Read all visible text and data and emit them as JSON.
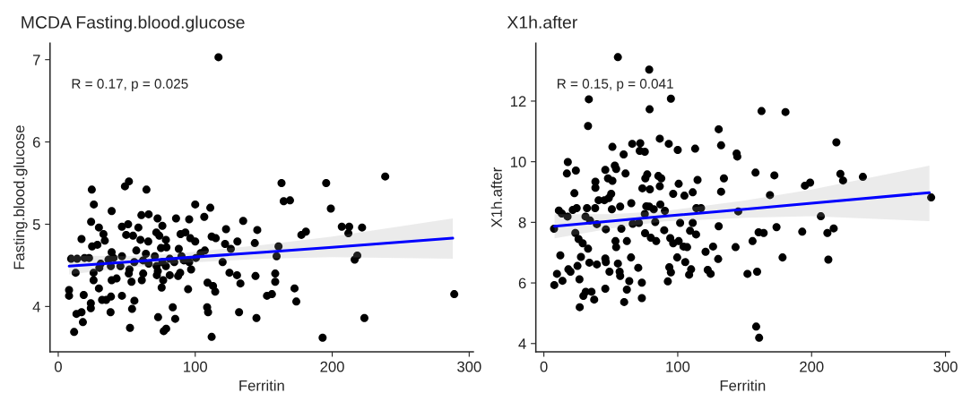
{
  "chart_data": [
    {
      "type": "scatter",
      "title": "MCDA Fasting.blood.glucose",
      "xlabel": "Ferritin",
      "ylabel": "Fasting.blood.glucose",
      "annotations": [
        "R = 0.17, p = 0.025"
      ],
      "xlim": [
        -6,
        303
      ],
      "ylim": [
        3.45,
        7.2
      ],
      "xticks": [
        0,
        100,
        200,
        300
      ],
      "yticks": [
        4,
        5,
        6,
        7
      ],
      "grid": false,
      "series": [
        {
          "color": "#000000",
          "marker": "circle",
          "x": [
            117,
            24.5,
            26,
            39,
            48.7,
            51.6,
            64.4,
            60.7,
            66,
            24,
            29.7,
            33,
            34,
            17,
            24.7,
            28.6,
            46.5,
            51,
            58.5,
            49.6,
            54.6,
            60,
            65.7,
            72.5,
            76,
            71.6,
            73.8,
            78.6,
            75,
            79,
            86,
            89.3,
            92.8,
            95.6,
            96.4,
            100,
            106.6,
            111,
            112,
            115,
            100,
            88,
            9.4,
            13.8,
            12.7,
            19.2,
            22.5,
            39,
            36.7,
            31,
            25.8,
            30,
            38.4,
            40.4,
            46.5,
            45.4,
            52,
            55.5,
            57,
            61.9,
            64,
            66,
            70.5,
            72.7,
            76,
            78.6,
            81.4,
            84.7,
            90,
            91.7,
            95.6,
            100.5,
            104,
            107,
            120,
            51.5,
            53.5,
            42.6,
            39,
            25.8,
            29.7,
            32,
            35,
            38.5,
            46.5,
            55.6,
            61,
            62,
            71.8,
            72,
            75.5,
            76.6,
            81.4,
            87.5,
            89,
            94.8,
            97,
            109,
            113,
            114.6,
            125,
            130.5,
            133,
            121.8,
            122.5,
            130.8,
            126,
            7.9,
            7.9,
            18.6,
            13.3,
            17,
            18,
            23.8,
            23.8,
            38.2,
            53.9,
            52.4,
            72.9,
            78.8,
            77,
            83.6,
            85.4,
            108.7,
            109.4,
            112,
            11.6,
            132,
            135,
            163,
            195.6,
            238.7,
            164.6,
            169.2,
            199,
            145.3,
            143.5,
            160.8,
            159.4,
            177.5,
            180.8,
            207,
            212.4,
            211.8,
            221.8,
            218.3,
            216.4,
            144,
            158.4,
            158.4,
            152.4,
            156,
            172.5,
            173.8,
            144.7,
            193,
            223.5,
            289.1
          ],
          "values": [
            7.03,
            5.42,
            5.24,
            5.16,
            5.46,
            5.52,
            5.42,
            5.11,
            5.12,
            5.03,
            4.96,
            4.88,
            4.8,
            4.82,
            4.73,
            4.75,
            4.97,
            5.0,
            4.96,
            4.87,
            4.86,
            4.81,
            4.79,
            5.07,
            4.98,
            4.9,
            4.86,
            4.81,
            4.71,
            4.72,
            5.07,
            4.88,
            4.9,
            5.06,
            4.83,
            5.24,
            5.09,
            5.2,
            4.85,
            4.83,
            4.79,
            4.7,
            4.58,
            4.58,
            4.41,
            4.59,
            4.59,
            4.66,
            4.57,
            4.52,
            4.41,
            4.47,
            4.49,
            4.59,
            4.61,
            4.49,
            4.45,
            4.54,
            4.68,
            4.56,
            4.64,
            4.52,
            4.61,
            4.43,
            4.54,
            4.49,
            4.58,
            4.54,
            4.61,
            4.56,
            4.54,
            4.59,
            4.65,
            4.68,
            4.54,
            4.4,
            4.3,
            4.34,
            4.32,
            4.32,
            4.22,
            4.08,
            4.08,
            4.12,
            4.13,
            4.07,
            4.32,
            4.4,
            4.49,
            4.38,
            4.23,
            4.32,
            4.38,
            4.37,
            4.41,
            4.21,
            4.45,
            4.29,
            4.25,
            4.18,
            4.41,
            4.38,
            4.28,
            4.76,
            4.94,
            4.79,
            4.7,
            4.2,
            4.13,
            4.14,
            3.91,
            3.93,
            3.81,
            3.98,
            4.04,
            3.93,
            3.97,
            3.74,
            3.87,
            3.73,
            3.7,
            3.99,
            3.85,
            3.99,
            3.93,
            3.63,
            3.69,
            3.93,
            5.04,
            5.5,
            5.5,
            5.58,
            5.28,
            5.29,
            5.19,
            4.93,
            4.77,
            4.73,
            4.61,
            4.87,
            4.91,
            4.97,
            4.97,
            4.89,
            4.96,
            4.62,
            4.57,
            4.37,
            4.4,
            4.3,
            4.13,
            4.15,
            4.22,
            4.06,
            3.86,
            3.62,
            3.86,
            4.15
          ]
        },
        {
          "type": "line",
          "color": "#0000ff",
          "x": [
            8,
            50,
            90,
            150,
            200,
            288
          ],
          "values": [
            4.49,
            4.54,
            4.59,
            4.66,
            4.72,
            4.83
          ],
          "lower": [
            4.39,
            4.47,
            4.53,
            4.58,
            4.6,
            4.58
          ],
          "upper": [
            4.62,
            4.61,
            4.65,
            4.75,
            4.85,
            5.07
          ]
        }
      ]
    },
    {
      "type": "scatter",
      "title": "X1h.after",
      "xlabel": "Ferritin",
      "ylabel": "X1h.after",
      "annotations": [
        "R = 0.15, p = 0.041"
      ],
      "xlim": [
        -6,
        303
      ],
      "ylim": [
        3.73,
        13.91
      ],
      "xticks": [
        0,
        100,
        200,
        300
      ],
      "yticks": [
        4,
        6,
        8,
        10,
        12
      ],
      "grid": false,
      "series": [
        {
          "color": "#000000",
          "marker": "circle",
          "x": [
            55.3,
            78.7,
            33.6,
            94.9,
            33,
            79,
            130.6,
            132.4,
            66,
            72,
            71.6,
            75.4,
            86.6,
            93.3,
            100,
            113,
            51.2,
            17.9,
            17.2,
            23.9,
            59.6,
            45.9,
            53,
            54,
            47.9,
            51.2,
            61,
            38.5,
            38.5,
            22.8,
            77.2,
            75.8,
            85.5,
            87.7,
            86.6,
            100.7,
            114.8,
            73.6,
            79.2,
            96.6,
            105,
            111.2,
            132.4,
            134.5,
            40.9,
            45.2,
            48.5,
            50.3,
            50.8,
            24.5,
            21.6,
            11.2,
            13.4,
            17.7,
            32.2,
            38.3,
            31.1,
            34.5,
            39.6,
            57,
            65.3,
            76.5,
            78.7,
            82.1,
            87,
            90.4,
            75.4,
            66.4,
            71,
            83.2,
            101.8,
            111.2,
            113.9,
            117.4,
            130.6,
            7.6,
            23.5,
            46.3,
            57.9,
            25.9,
            29,
            33,
            53.5,
            54,
            62,
            75.6,
            79.9,
            83.9,
            89.9,
            94.4,
            96.6,
            100.7,
            104.3,
            107,
            109.2,
            113.7,
            12.3,
            27.7,
            18.3,
            19.9,
            25.1,
            34,
            39.6,
            45.9,
            46.3,
            49,
            55.3,
            56.6,
            57,
            65.1,
            70.5,
            73.2,
            93.7,
            94.9,
            92.6,
            99.6,
            105.6,
            108.5,
            110,
            120.8,
            126.4,
            130.2,
            122.4,
            124.6,
            7.8,
            9.8,
            13.9,
            26.6,
            29.5,
            31.3,
            35.6,
            37.6,
            26.8,
            45.9,
            63.8,
            62,
            60,
            73.2,
            162.6,
            180.5,
            218.5,
            144,
            144.5,
            158.1,
            172.2,
            221.5,
            223.5,
            238.3,
            195,
            198.9,
            168.9,
            145.2,
            206.9,
            289.3,
            160.4,
            164.2,
            173.8,
            193,
            211.8,
            216.5,
            143.2,
            155.9,
            178.3,
            212.5,
            152.1,
            159.3,
            158.6,
            160.8
          ],
          "values": [
            13.45,
            13.04,
            12.06,
            12.08,
            11.18,
            11.73,
            11.07,
            10.54,
            10.59,
            10.61,
            10.36,
            10.33,
            10.76,
            10.59,
            10.39,
            10.43,
            10.49,
            9.99,
            9.61,
            9.71,
            10.24,
            9.73,
            9.87,
            9.76,
            9.45,
            9.37,
            9.61,
            9.34,
            9.14,
            8.96,
            9.58,
            9.45,
            9.53,
            9.45,
            9.19,
            9.27,
            9.4,
            9.12,
            9.09,
            8.94,
            8.88,
            8.99,
            9.01,
            9.45,
            8.73,
            8.73,
            8.8,
            8.94,
            8.43,
            8.47,
            8.41,
            8.39,
            8.29,
            8.19,
            8.47,
            8.47,
            8.19,
            8.06,
            7.94,
            8.52,
            8.63,
            8.53,
            8.52,
            8.43,
            8.59,
            8.38,
            8.28,
            7.95,
            7.98,
            8.01,
            7.98,
            7.98,
            8.47,
            8.47,
            7.87,
            7.79,
            7.65,
            7.77,
            7.79,
            7.45,
            7.31,
            7.13,
            7.38,
            7.18,
            7.38,
            7.64,
            7.49,
            7.38,
            7.74,
            7.48,
            7.31,
            7.38,
            7.2,
            7.18,
            7.72,
            7.6,
            6.91,
            6.86,
            6.45,
            6.37,
            6.56,
            6.67,
            6.61,
            6.81,
            6.69,
            6.37,
            6.64,
            6.37,
            6.23,
            6.84,
            6.5,
            6.01,
            6.52,
            6.35,
            6.05,
            6.84,
            6.69,
            6.27,
            6.45,
            7.03,
            7.2,
            6.79,
            6.43,
            6.3,
            5.93,
            6.3,
            6.07,
            6.12,
            5.57,
            5.71,
            5.71,
            5.45,
            5.2,
            5.81,
            6.06,
            5.78,
            5.37,
            5.5,
            11.67,
            11.64,
            10.64,
            10.27,
            10.17,
            9.64,
            9.55,
            9.6,
            9.38,
            9.5,
            9.21,
            9.31,
            8.9,
            8.36,
            8.2,
            8.82,
            7.67,
            7.65,
            7.84,
            7.69,
            7.65,
            7.8,
            7.18,
            7.38,
            6.84,
            6.77,
            6.3,
            6.37,
            4.56,
            4.19
          ]
        },
        {
          "type": "line",
          "color": "#0000ff",
          "x": [
            8,
            50,
            90,
            150,
            200,
            288
          ],
          "values": [
            7.87,
            8.04,
            8.2,
            8.43,
            8.63,
            8.98
          ],
          "lower": [
            7.47,
            7.8,
            8.03,
            8.15,
            8.2,
            8.04
          ],
          "upper": [
            8.27,
            8.27,
            8.37,
            8.72,
            9.08,
            9.87
          ]
        }
      ]
    }
  ]
}
